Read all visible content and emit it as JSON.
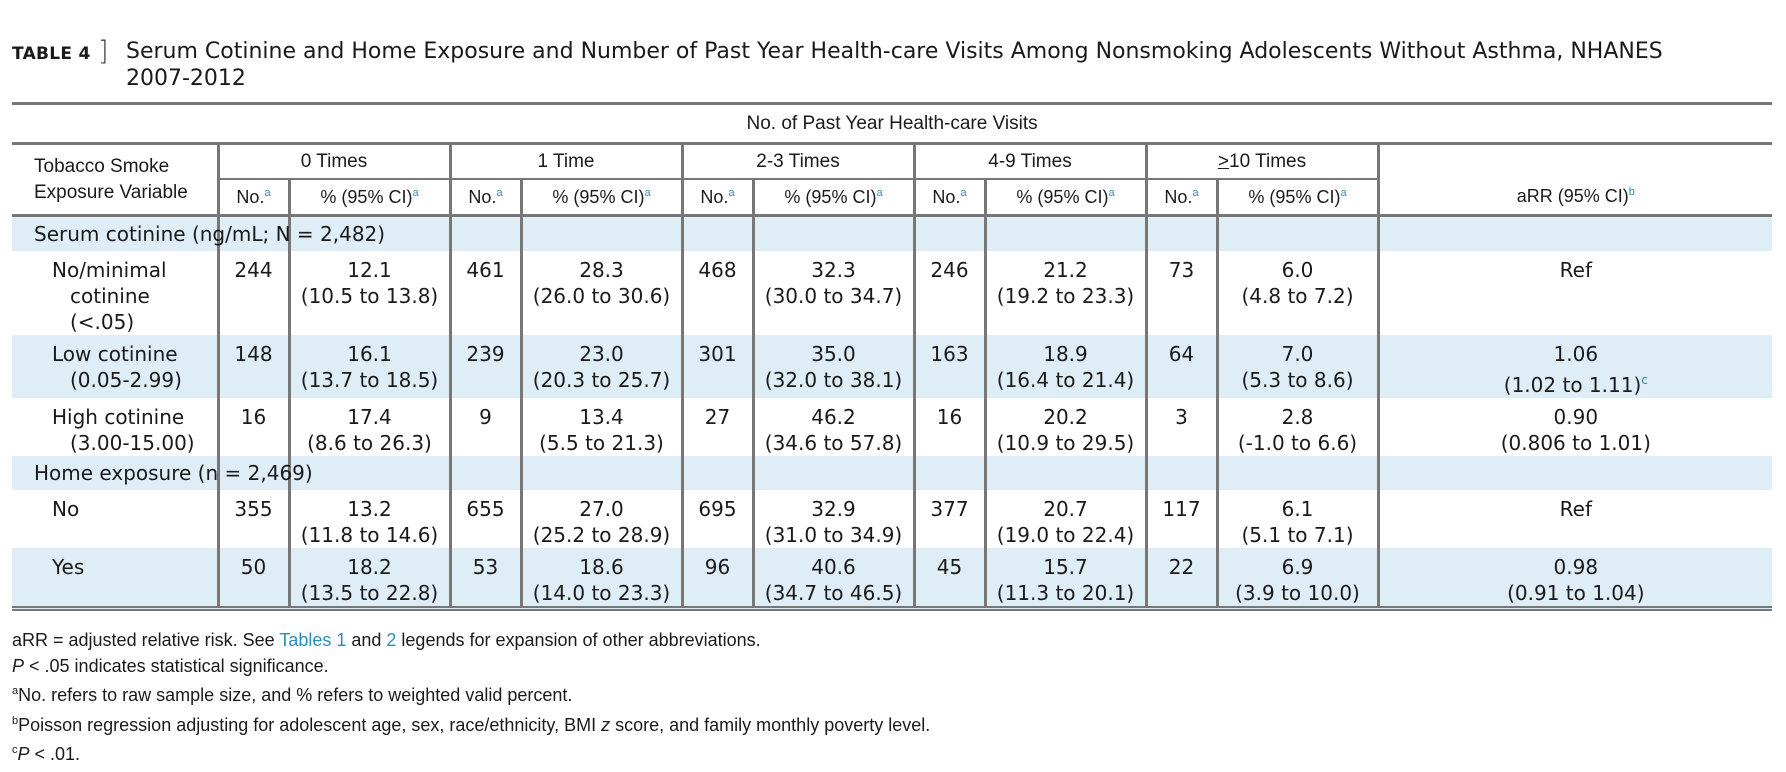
{
  "table_label": "TABLE 4",
  "bracket": "]",
  "title_line1": "Serum Cotinine and Home Exposure and Number of Past Year Health-care Visits Among Nonsmoking Adolescents Without Asthma, NHANES",
  "title_line2": "2007-2012",
  "spanner": "No. of Past Year Health-care Visits",
  "stub_header_line1": "Tobacco Smoke",
  "stub_header_line2": "Exposure Variable",
  "visit_groups": [
    "0 Times",
    "1 Time",
    "2-3 Times",
    "4-9 Times",
    "10 Times"
  ],
  "ge_symbol": ">",
  "col_no": "No.",
  "col_pct": "% (95% CI)",
  "col_arr": "aRR (95% CI)",
  "fn_a": "a",
  "fn_b": "b",
  "fn_c": "c",
  "sections": [
    {
      "label": "Serum cotinine (ng/mL; N = 2,482)",
      "rows": [
        {
          "label1": "No/minimal",
          "label2": "cotinine (<.05)",
          "cells": [
            [
              "244",
              "12.1",
              "(10.5 to 13.8)"
            ],
            [
              "461",
              "28.3",
              "(26.0 to 30.6)"
            ],
            [
              "468",
              "32.3",
              "(30.0 to 34.7)"
            ],
            [
              "246",
              "21.2",
              "(19.2 to 23.3)"
            ],
            [
              "73",
              "6.0",
              "(4.8 to 7.2)"
            ]
          ],
          "arr1": "Ref",
          "arr2": ""
        },
        {
          "label1": "Low cotinine",
          "label2": "(0.05-2.99)",
          "cells": [
            [
              "148",
              "16.1",
              "(13.7 to 18.5)"
            ],
            [
              "239",
              "23.0",
              "(20.3 to 25.7)"
            ],
            [
              "301",
              "35.0",
              "(32.0 to 38.1)"
            ],
            [
              "163",
              "18.9",
              "(16.4 to 21.4)"
            ],
            [
              "64",
              "7.0",
              "(5.3 to 8.6)"
            ]
          ],
          "arr1": "1.06",
          "arr2": "(1.02 to 1.11)",
          "arr_sup": "c"
        },
        {
          "label1": "High cotinine",
          "label2": "(3.00-15.00)",
          "cells": [
            [
              "16",
              "17.4",
              "(8.6 to 26.3)"
            ],
            [
              "9",
              "13.4",
              "(5.5 to 21.3)"
            ],
            [
              "27",
              "46.2",
              "(34.6 to 57.8)"
            ],
            [
              "16",
              "20.2",
              "(10.9 to 29.5)"
            ],
            [
              "3",
              "2.8",
              "(-1.0 to 6.6)"
            ]
          ],
          "arr1": "0.90",
          "arr2": "(0.806 to 1.01)"
        }
      ]
    },
    {
      "label": "Home exposure (n = 2,469)",
      "rows": [
        {
          "label1": "No",
          "label2": "",
          "cells": [
            [
              "355",
              "13.2",
              "(11.8 to 14.6)"
            ],
            [
              "655",
              "27.0",
              "(25.2 to 28.9)"
            ],
            [
              "695",
              "32.9",
              "(31.0 to 34.9)"
            ],
            [
              "377",
              "20.7",
              "(19.0 to 22.4)"
            ],
            [
              "117",
              "6.1",
              "(5.1 to 7.1)"
            ]
          ],
          "arr1": "Ref",
          "arr2": ""
        },
        {
          "label1": "Yes",
          "label2": "",
          "cells": [
            [
              "50",
              "18.2",
              "(13.5 to 22.8)"
            ],
            [
              "53",
              "18.6",
              "(14.0 to 23.3)"
            ],
            [
              "96",
              "40.6",
              "(34.7 to 46.5)"
            ],
            [
              "45",
              "15.7",
              "(11.3 to 20.1)"
            ],
            [
              "22",
              "6.9",
              "(3.9 to 10.0)"
            ]
          ],
          "arr1": "0.98",
          "arr2": "(0.91 to 1.04)"
        }
      ]
    }
  ],
  "notes": {
    "n1_pre": "aRR = adjusted relative risk. See ",
    "n1_link1": "Tables 1",
    "n1_mid": " and ",
    "n1_link2": "2",
    "n1_post": " legends for expansion of other abbreviations.",
    "n2_p": "P",
    "n2_rest": " < .05 indicates statistical significance.",
    "n3_sup": "a",
    "n3": "No. refers to raw sample size, and % refers to weighted valid percent.",
    "n4_sup": "b",
    "n4_pre": "Poisson regression adjusting for adolescent age, sex, race/ethnicity, BMI ",
    "n4_z": "z",
    "n4_post": " score, and family monthly poverty level.",
    "n5_sup": "c",
    "n5_p": "P",
    "n5_rest": " < .01."
  }
}
